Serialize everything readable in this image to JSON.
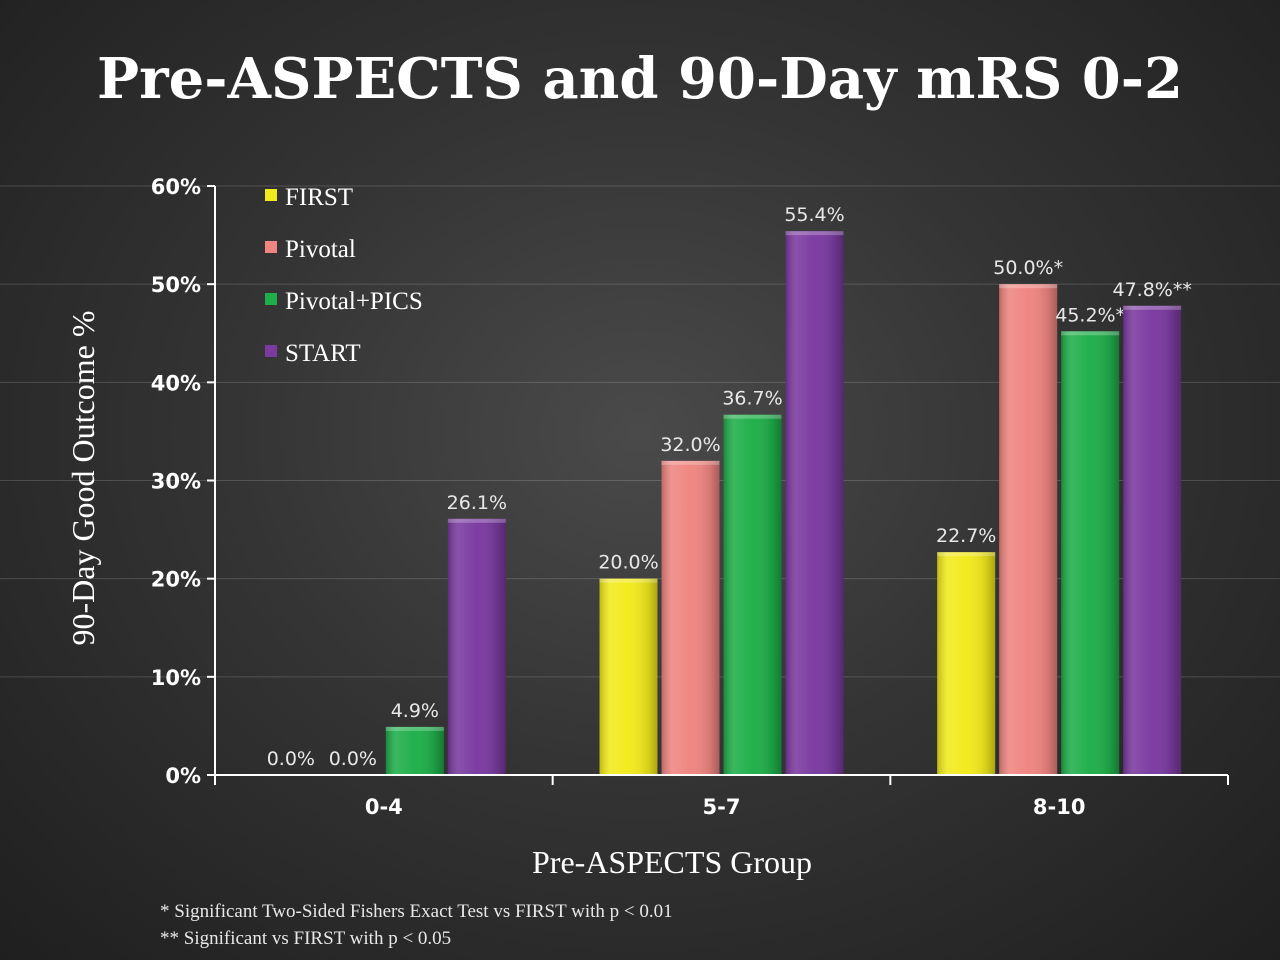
{
  "chart_data": {
    "type": "bar",
    "title": "Pre-ASPECTS and 90-Day mRS 0-2",
    "xlabel": "Pre-ASPECTS Group",
    "ylabel": "90-Day Good Outcome %",
    "ylim": [
      0,
      60
    ],
    "yticks": [
      "0%",
      "10%",
      "20%",
      "30%",
      "40%",
      "50%",
      "60%"
    ],
    "grid": true,
    "legend_position": "top-left",
    "categories": [
      "0-4",
      "5-7",
      "8-10"
    ],
    "series": [
      {
        "name": "FIRST",
        "color": "#f2ea1c",
        "values": [
          0.0,
          20.0,
          22.7
        ],
        "labels": [
          "0.0%",
          "20.0%",
          "22.7%"
        ]
      },
      {
        "name": "Pivotal",
        "color": "#ef8580",
        "values": [
          0.0,
          32.0,
          50.0
        ],
        "labels": [
          "0.0%",
          "32.0%",
          "50.0%*"
        ]
      },
      {
        "name": "Pivotal+PICS",
        "color": "#1fae4a",
        "values": [
          4.9,
          36.7,
          45.2
        ],
        "labels": [
          "4.9%",
          "36.7%",
          "45.2%*"
        ]
      },
      {
        "name": "START",
        "color": "#7a3aa0",
        "values": [
          26.1,
          55.4,
          47.8
        ],
        "labels": [
          "26.1%",
          "55.4%",
          "47.8%**"
        ]
      }
    ]
  },
  "footnotes": [
    "* Significant Two-Sided Fishers Exact Test vs FIRST with p < 0.01",
    "** Significant vs FIRST with p < 0.05"
  ]
}
